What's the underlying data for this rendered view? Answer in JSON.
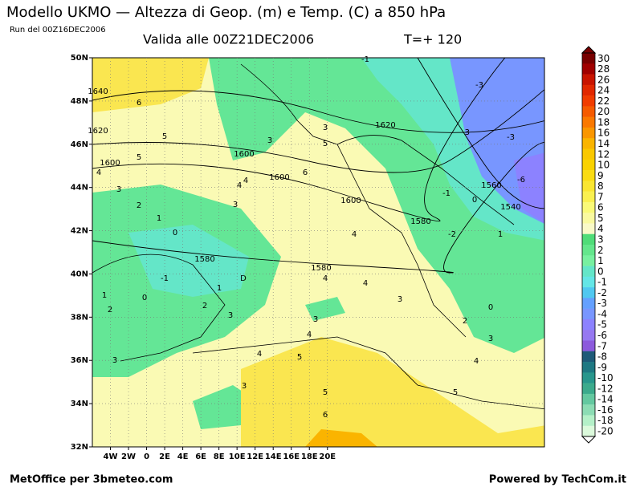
{
  "header": {
    "title": "Modello UKMO — Altezza di Geop. (m) e Temp. (C) a 850 hPa",
    "run": "Run del 00Z16DEC2006",
    "valid": "Valida alle 00Z21DEC2006",
    "lead": "T=+ 120"
  },
  "map": {
    "lat_labels": [
      "50N",
      "48N",
      "46N",
      "44N",
      "42N",
      "40N",
      "38N",
      "36N",
      "34N",
      "32N"
    ],
    "lon_labels": [
      "4W",
      "2W",
      "0",
      "2E",
      "4E",
      "6E",
      "8E",
      "10E",
      "12E",
      "14E",
      "16E",
      "18E",
      "20E"
    ],
    "contour_labels": [
      "1640",
      "6",
      "1620",
      "5",
      "5",
      "1600",
      "4",
      "3",
      "2",
      "1",
      "0",
      "1580",
      "-1",
      "1",
      "0",
      "2",
      "1",
      "D",
      "2",
      "3",
      "1600",
      "3",
      "4",
      "4",
      "3",
      "1600",
      "6",
      "3",
      "5",
      "1620",
      "-1",
      "-3",
      "-3",
      "-3",
      "1600",
      "1580",
      "-1",
      "0",
      "1560",
      "-6",
      "1540",
      "-2",
      "1",
      "4",
      "1580",
      "4",
      "4",
      "3",
      "0",
      "2",
      "3",
      "4",
      "3",
      "5",
      "4",
      "4",
      "3",
      "3",
      "5",
      "5",
      "6"
    ]
  },
  "colorbar": {
    "labels": [
      "30",
      "28",
      "26",
      "24",
      "22",
      "20",
      "18",
      "16",
      "14",
      "12",
      "10",
      "9",
      "8",
      "7",
      "6",
      "5",
      "4",
      "3",
      "2",
      "1",
      "0",
      "-1",
      "-2",
      "-3",
      "-4",
      "-5",
      "-6",
      "-7",
      "-8",
      "-9",
      "-10",
      "-12",
      "-14",
      "-16",
      "-18",
      "-20"
    ],
    "colors": [
      "#780000",
      "#a00000",
      "#c81400",
      "#e12800",
      "#f03c00",
      "#f55a00",
      "#fa7800",
      "#fa9600",
      "#fab400",
      "#fac800",
      "#fad200",
      "#fadc14",
      "#fae632",
      "#faf050",
      "#fafa78",
      "#fafaa0",
      "#fafac8",
      "#50dc78",
      "#64e68c",
      "#78f0a0",
      "#64e6c8",
      "#64e6e6",
      "#50c8f0",
      "#64a0ff",
      "#7896ff",
      "#8c82ff",
      "#9678f0",
      "#8c5adc",
      "#1e5a78",
      "#1e7882",
      "#28968c",
      "#3caa8c",
      "#64c8a0",
      "#8cdcb4",
      "#b4f0c8",
      "#dcfadc"
    ]
  },
  "footer": {
    "left": "MetOffice per 3bmeteo.com",
    "right": "Powered by TechCom.it"
  }
}
